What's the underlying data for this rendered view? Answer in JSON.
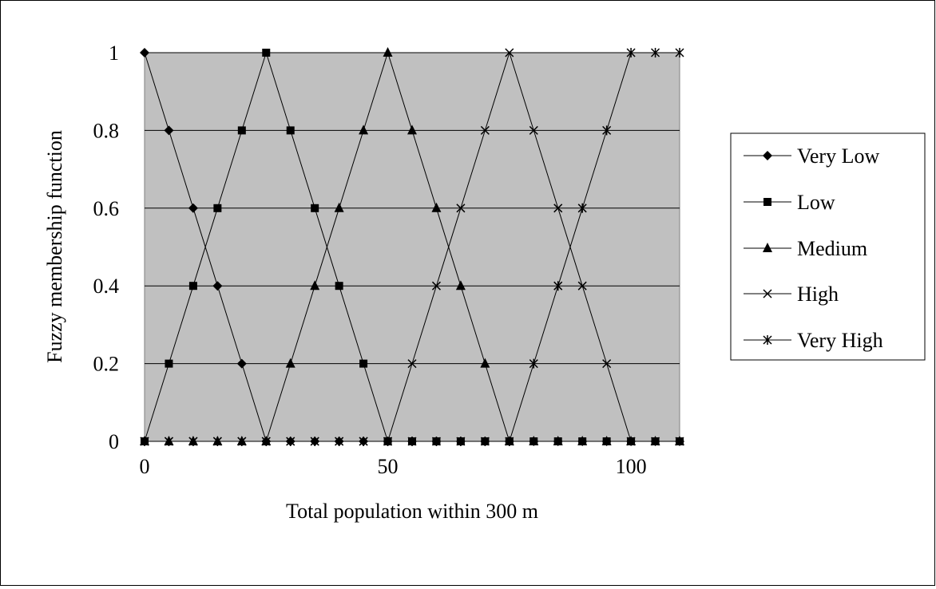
{
  "chart_data": {
    "type": "line",
    "xlabel": "Total population within 300 m",
    "ylabel": "Fuzzy membership function",
    "xlim": [
      0,
      110
    ],
    "ylim": [
      0,
      1
    ],
    "x_ticks": [
      "0",
      "50",
      "100"
    ],
    "y_ticks": [
      "0",
      "0.2",
      "0.4",
      "0.6",
      "0.8",
      "1"
    ],
    "grid": "horizontal",
    "plot_background": "#c0c0c0",
    "line_color": "#000000",
    "legend_position": "right",
    "x": [
      0,
      5,
      10,
      15,
      20,
      25,
      30,
      35,
      40,
      45,
      50,
      55,
      60,
      65,
      70,
      75,
      80,
      85,
      90,
      95,
      100,
      105,
      110
    ],
    "series": [
      {
        "name": "Very Low",
        "marker": "diamond",
        "values": [
          1,
          0.8,
          0.6,
          0.4,
          0.2,
          0,
          0,
          0,
          0,
          0,
          0,
          0,
          0,
          0,
          0,
          0,
          0,
          0,
          0,
          0,
          0,
          0,
          0
        ]
      },
      {
        "name": "Low",
        "marker": "square",
        "values": [
          0,
          0.2,
          0.4,
          0.6,
          0.8,
          1,
          0.8,
          0.6,
          0.4,
          0.2,
          0,
          0,
          0,
          0,
          0,
          0,
          0,
          0,
          0,
          0,
          0,
          0,
          0
        ]
      },
      {
        "name": "Medium",
        "marker": "triangle",
        "values": [
          0,
          0,
          0,
          0,
          0,
          0,
          0.2,
          0.4,
          0.6,
          0.8,
          1,
          0.8,
          0.6,
          0.4,
          0.2,
          0,
          0,
          0,
          0,
          0,
          0,
          0,
          0
        ]
      },
      {
        "name": "High",
        "marker": "x",
        "values": [
          0,
          0,
          0,
          0,
          0,
          0,
          0,
          0,
          0,
          0,
          0,
          0.2,
          0.4,
          0.6,
          0.8,
          1,
          0.8,
          0.6,
          0.4,
          0.2,
          0,
          0,
          0
        ]
      },
      {
        "name": "Very High",
        "marker": "asterisk",
        "values": [
          0,
          0,
          0,
          0,
          0,
          0,
          0,
          0,
          0,
          0,
          0,
          0,
          0,
          0,
          0,
          0,
          0.2,
          0.4,
          0.6,
          0.8,
          1,
          1,
          1
        ]
      }
    ]
  }
}
